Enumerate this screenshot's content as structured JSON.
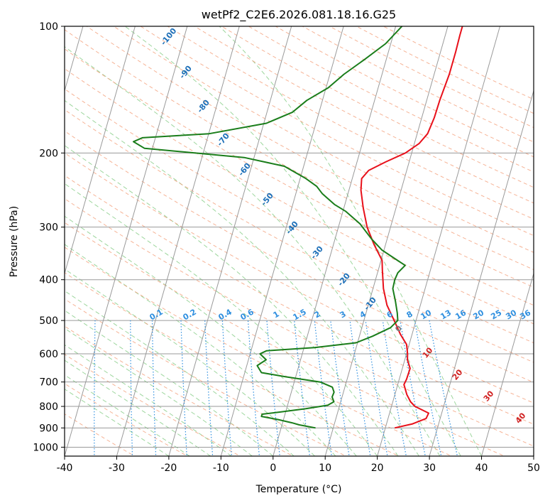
{
  "chart_data": {
    "type": "line",
    "diagram": "skew-T log-P",
    "title": "wetPf2_C2E6.2026.081.18.16.G25",
    "xlabel": "Temperature (°C)",
    "ylabel": "Pressure (hPa)",
    "xlim": [
      -40,
      50
    ],
    "ylim": [
      1050,
      100
    ],
    "x_ticks": [
      -40,
      -30,
      -20,
      -10,
      0,
      10,
      20,
      30,
      40,
      50
    ],
    "y_ticks": [
      1000,
      900,
      800,
      700,
      600,
      500,
      400,
      300,
      200,
      100
    ],
    "isotherm_labels": [
      "-100",
      "-90",
      "-80",
      "-70",
      "-60",
      "-50",
      "-40",
      "-30",
      "-20",
      "-10",
      "0",
      "10",
      "20",
      "30",
      "40"
    ],
    "mixing_ratio_labels": [
      "0.1",
      "0.2",
      "0.4",
      "0.6",
      "1",
      "1.5",
      "2",
      "3",
      "4",
      "6",
      "8",
      "10",
      "13",
      "16",
      "20",
      "25",
      "30",
      "36"
    ],
    "series": [
      {
        "name": "Temperature",
        "color": "#e8101a",
        "points": [
          [
            900,
            21.8
          ],
          [
            880,
            25.0
          ],
          [
            855,
            27.3
          ],
          [
            830,
            27.5
          ],
          [
            800,
            24.5
          ],
          [
            780,
            23.4
          ],
          [
            750,
            22.3
          ],
          [
            710,
            21.2
          ],
          [
            690,
            21.4
          ],
          [
            650,
            21.5
          ],
          [
            620,
            20.5
          ],
          [
            600,
            20.2
          ],
          [
            570,
            19.5
          ],
          [
            540,
            17.8
          ],
          [
            500,
            15.8
          ],
          [
            460,
            13.6
          ],
          [
            420,
            12.0
          ],
          [
            380,
            10.8
          ],
          [
            360,
            10.2
          ],
          [
            330,
            7.8
          ],
          [
            300,
            5.5
          ],
          [
            270,
            3.7
          ],
          [
            245,
            2.3
          ],
          [
            230,
            1.8
          ],
          [
            220,
            2.7
          ],
          [
            210,
            5.5
          ],
          [
            200,
            8.8
          ],
          [
            190,
            10.9
          ],
          [
            180,
            12.0
          ],
          [
            165,
            12.4
          ],
          [
            150,
            12.5
          ],
          [
            130,
            12.9
          ],
          [
            115,
            12.9
          ],
          [
            105,
            12.8
          ],
          [
            100,
            12.8
          ]
        ]
      },
      {
        "name": "Dewpoint",
        "color": "#1a7d1a",
        "points": [
          [
            900,
            6.6
          ],
          [
            885,
            3.3
          ],
          [
            875,
            1.8
          ],
          [
            860,
            -1.0
          ],
          [
            845,
            -4.4
          ],
          [
            835,
            -4.4
          ],
          [
            825,
            -1.0
          ],
          [
            810,
            3.7
          ],
          [
            795,
            7.7
          ],
          [
            780,
            8.7
          ],
          [
            760,
            8.1
          ],
          [
            740,
            8.2
          ],
          [
            720,
            7.6
          ],
          [
            700,
            5.0
          ],
          [
            680,
            -2.0
          ],
          [
            665,
            -6.8
          ],
          [
            640,
            -8.0
          ],
          [
            620,
            -6.6
          ],
          [
            600,
            -8.1
          ],
          [
            590,
            -7.0
          ],
          [
            580,
            2.0
          ],
          [
            565,
            9.7
          ],
          [
            545,
            12.5
          ],
          [
            520,
            15.5
          ],
          [
            500,
            16.5
          ],
          [
            480,
            16.0
          ],
          [
            450,
            15.0
          ],
          [
            420,
            13.8
          ],
          [
            400,
            13.7
          ],
          [
            385,
            13.9
          ],
          [
            370,
            14.9
          ],
          [
            355,
            12.3
          ],
          [
            340,
            9.6
          ],
          [
            320,
            7.0
          ],
          [
            295,
            4.0
          ],
          [
            275,
            0.5
          ],
          [
            265,
            -2.0
          ],
          [
            250,
            -4.9
          ],
          [
            240,
            -6.4
          ],
          [
            230,
            -8.9
          ],
          [
            215,
            -13.7
          ],
          [
            205,
            -21.9
          ],
          [
            195,
            -41.5
          ],
          [
            188,
            -44.0
          ],
          [
            184,
            -42.5
          ],
          [
            180,
            -29.9
          ],
          [
            170,
            -19.5
          ],
          [
            160,
            -15.1
          ],
          [
            150,
            -13.0
          ],
          [
            140,
            -9.6
          ],
          [
            130,
            -7.3
          ],
          [
            120,
            -4.2
          ],
          [
            110,
            -1.0
          ],
          [
            100,
            1.2
          ]
        ]
      }
    ],
    "colors": {
      "isotherm": "#9a9a9a",
      "dry_adiabat": "#f4a07c",
      "moist_adiabat": "#8ccf8c",
      "mixing_ratio": "#2f8fdf",
      "isotherm_label_cold": "#1d6fb8",
      "isotherm_label_zero": "#7a7a7a",
      "isotherm_label_warm": "#d02020",
      "sat_curve": "#d9c09a"
    }
  }
}
